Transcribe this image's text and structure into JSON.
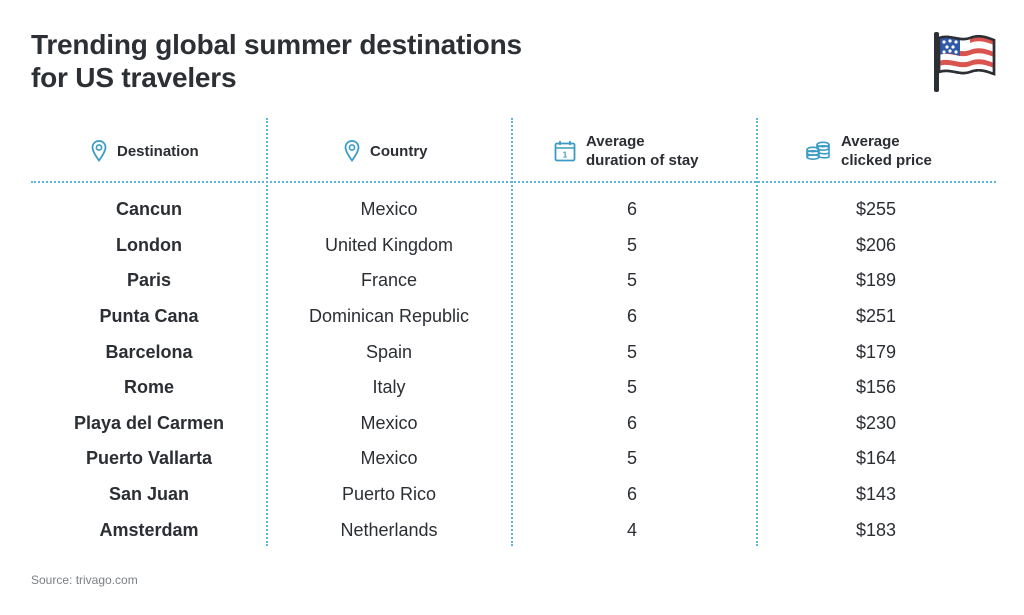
{
  "title": {
    "line1": "Trending global summer destinations",
    "line2": "for US travelers"
  },
  "icons": {
    "flag": "us-flag-icon",
    "destination": "map-pin-icon",
    "country": "map-pin-icon",
    "duration": "calendar-icon",
    "price": "coins-icon"
  },
  "colors": {
    "accent": "#3a9cc4",
    "divider": "#5cb6d6",
    "text": "#2b2e33",
    "flag_red": "#d9534f",
    "flag_blue": "#2f5aa6"
  },
  "chart_data": {
    "type": "table",
    "columns": [
      {
        "key": "destination",
        "label_lines": [
          "Destination"
        ]
      },
      {
        "key": "country",
        "label_lines": [
          "Country"
        ]
      },
      {
        "key": "duration",
        "label_lines": [
          "Average",
          "duration of stay"
        ]
      },
      {
        "key": "price",
        "label_lines": [
          "Average",
          "clicked price"
        ]
      }
    ],
    "rows": [
      {
        "destination": "Cancun",
        "country": "Mexico",
        "duration": "6",
        "price": "$255"
      },
      {
        "destination": "London",
        "country": "United Kingdom",
        "duration": "5",
        "price": "$206"
      },
      {
        "destination": "Paris",
        "country": "France",
        "duration": "5",
        "price": "$189"
      },
      {
        "destination": "Punta Cana",
        "country": "Dominican Republic",
        "duration": "6",
        "price": "$251"
      },
      {
        "destination": "Barcelona",
        "country": "Spain",
        "duration": "5",
        "price": "$179"
      },
      {
        "destination": "Rome",
        "country": "Italy",
        "duration": "5",
        "price": "$156"
      },
      {
        "destination": "Playa del Carmen",
        "country": "Mexico",
        "duration": "6",
        "price": "$230"
      },
      {
        "destination": "Puerto Vallarta",
        "country": "Mexico",
        "duration": "5",
        "price": "$164"
      },
      {
        "destination": "San Juan",
        "country": "Puerto Rico",
        "duration": "6",
        "price": "$143"
      },
      {
        "destination": "Amsterdam",
        "country": "Netherlands",
        "duration": "4",
        "price": "$183"
      }
    ]
  },
  "source": "Source: trivago.com"
}
